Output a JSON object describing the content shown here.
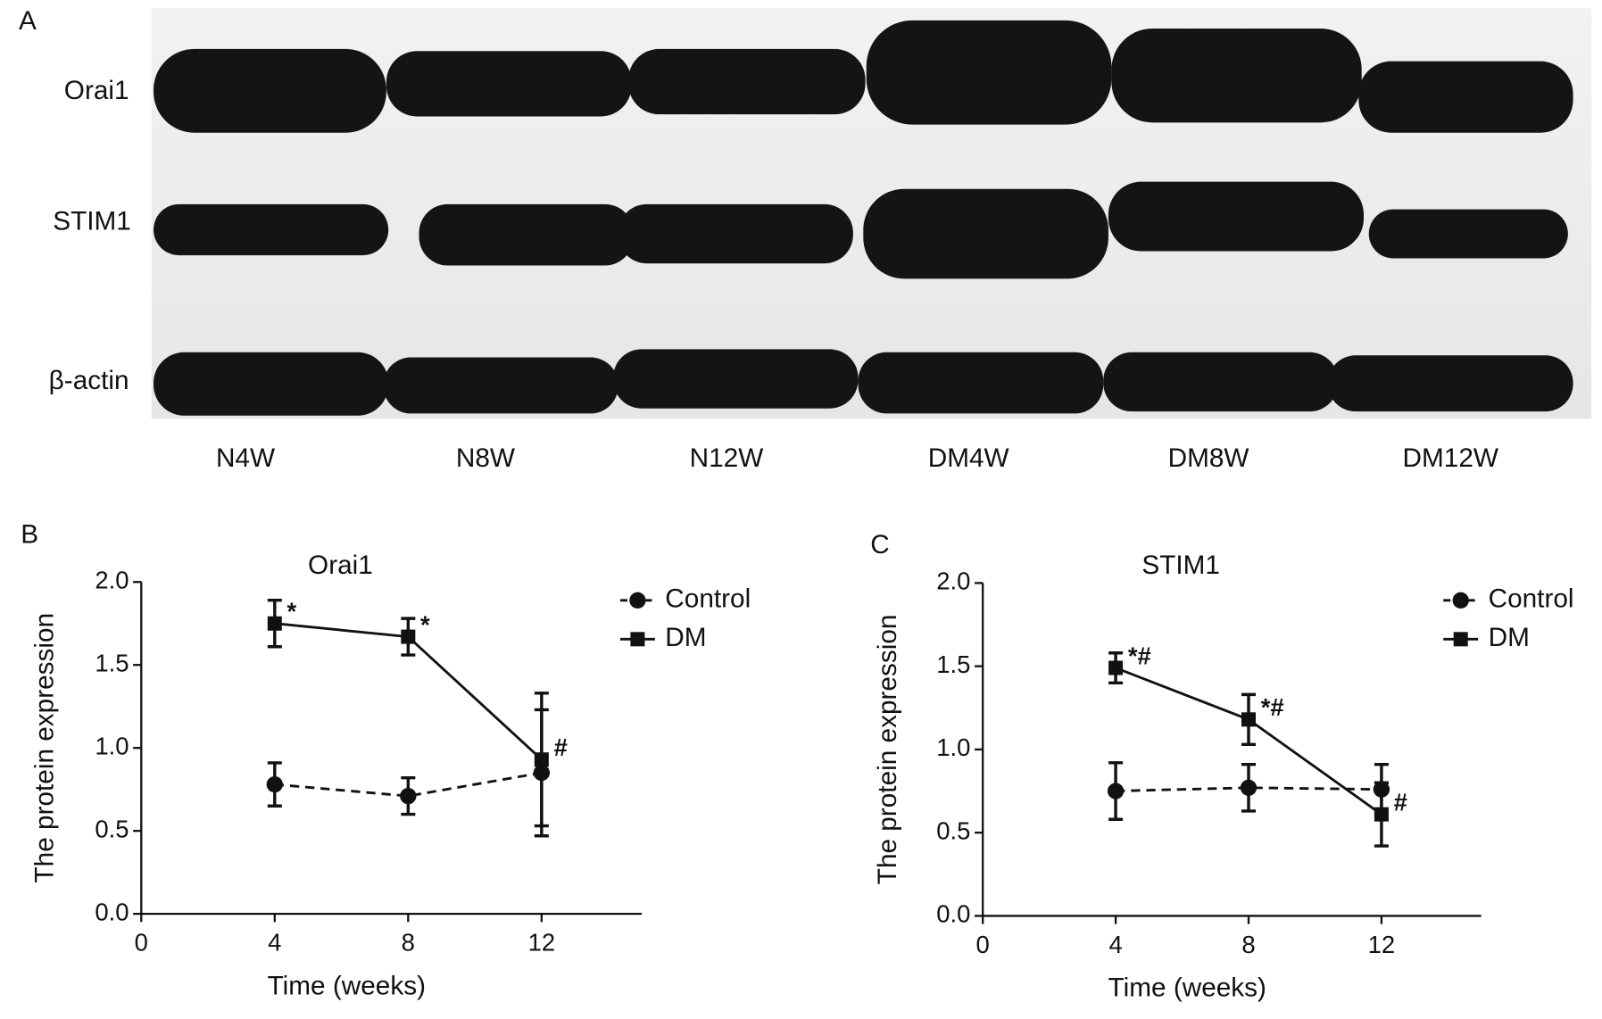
{
  "panel_labels": [
    "A",
    "B",
    "C"
  ],
  "blot": {
    "rows": [
      "Orai1",
      "STIM1",
      "β-actin"
    ],
    "lanes": [
      "N4W",
      "N8W",
      "N12W",
      "DM4W",
      "DM8W",
      "DM12W"
    ]
  },
  "chart_data": [
    {
      "type": "line",
      "title": "Orai1",
      "xlabel": "Time (weeks)",
      "ylabel": "The protein expression",
      "x": [
        4,
        8,
        12
      ],
      "xlim": [
        0,
        15
      ],
      "xticks": [
        0,
        4,
        8,
        12
      ],
      "ylim": [
        0,
        2
      ],
      "yticks": [
        {
          "value": 0,
          "label": "0.0"
        },
        0.5,
        {
          "value": 1,
          "label": "1.0"
        },
        1.5,
        {
          "value": 2,
          "label": "2.0"
        }
      ],
      "legend": "upper right",
      "series": [
        {
          "name": "Control",
          "color": "#111111",
          "marker": "circle",
          "dash": true,
          "values": [
            0.78,
            0.71,
            0.85
          ],
          "errors": [
            0.13,
            0.11,
            0.38
          ]
        },
        {
          "name": "DM",
          "color": "#111111",
          "marker": "square",
          "dash": false,
          "values": [
            1.75,
            1.67,
            0.93
          ],
          "errors": [
            0.14,
            0.11,
            0.4
          ],
          "annotations": [
            "*",
            "*",
            "#"
          ]
        }
      ]
    },
    {
      "type": "line",
      "title": "STIM1",
      "xlabel": "Time (weeks)",
      "ylabel": "The protein expression",
      "x": [
        4,
        8,
        12
      ],
      "xlim": [
        0,
        15
      ],
      "xticks": [
        0,
        4,
        8,
        12
      ],
      "ylim": [
        0,
        2
      ],
      "yticks": [
        {
          "value": 0,
          "label": "0.0"
        },
        0.5,
        {
          "value": 1,
          "label": "1.0"
        },
        1.5,
        {
          "value": 2,
          "label": "2.0"
        }
      ],
      "legend": "upper right",
      "series": [
        {
          "name": "Control",
          "color": "#111111",
          "marker": "circle",
          "dash": true,
          "values": [
            0.75,
            0.77,
            0.76
          ],
          "errors": [
            0.17,
            0.14,
            0.15
          ]
        },
        {
          "name": "DM",
          "color": "#111111",
          "marker": "square",
          "dash": false,
          "values": [
            1.49,
            1.18,
            0.61
          ],
          "errors": [
            0.09,
            0.15,
            0.19
          ],
          "annotations": [
            "*#",
            "*#",
            "#"
          ]
        }
      ]
    }
  ]
}
